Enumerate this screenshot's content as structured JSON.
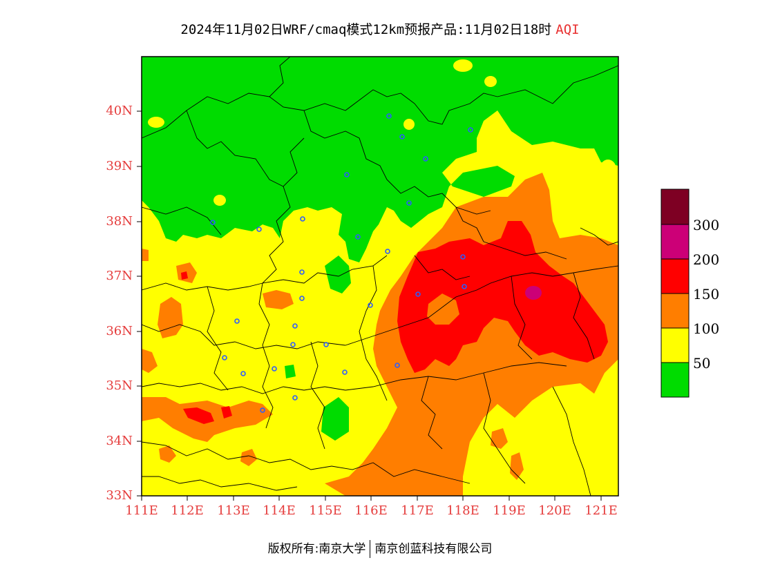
{
  "title": {
    "main": "2024年11月02日WRF/cmaq模式12km预报产品:11月02日18时",
    "variable": "AQI",
    "variable_color": "#e83030"
  },
  "map": {
    "lon_range": [
      111,
      121.5
    ],
    "lat_range": [
      33,
      41
    ],
    "lat_ticks": [
      "40N",
      "39N",
      "38N",
      "37N",
      "36N",
      "35N",
      "34N",
      "33N"
    ],
    "lon_ticks": [
      "111E",
      "112E",
      "113E",
      "114E",
      "115E",
      "116E",
      "117E",
      "118E",
      "119E",
      "120E",
      "121E"
    ],
    "tick_color": "#e53b3b",
    "colors": {
      "good": "#00dc00",
      "moderate": "#ffff00",
      "unhealthy_sensitive": "#ff7e00",
      "unhealthy": "#ff0000",
      "very_unhealthy": "#cc0077",
      "hazardous": "#7e0023",
      "boundary": "#000000",
      "station": "#2c5cff"
    }
  },
  "colorbar": {
    "labels": [
      "300",
      "200",
      "150",
      "100",
      "50"
    ],
    "colors": [
      "#7e0023",
      "#cc0077",
      "#ff0000",
      "#ff7e00",
      "#ffff00",
      "#00dc00"
    ]
  },
  "footer": {
    "left": "版权所有:南京大学",
    "right": "南京创蓝科技有限公司"
  }
}
